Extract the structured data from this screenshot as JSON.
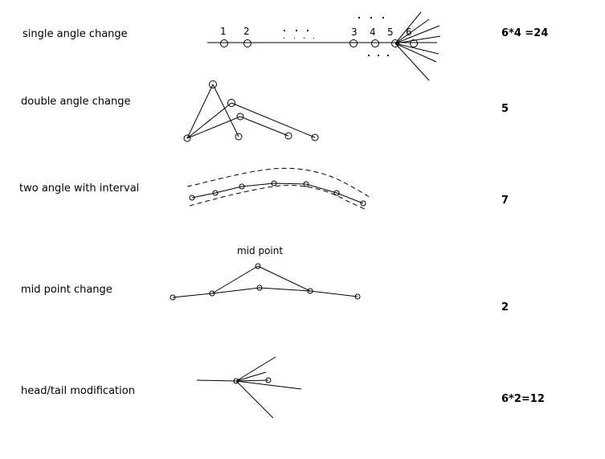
{
  "rows": [
    {
      "label": "single angle change",
      "count": "6*4 =24"
    },
    {
      "label": "double angle change",
      "count": "5"
    },
    {
      "label": "two angle with interval",
      "count": "7"
    },
    {
      "label": "mid point change",
      "count": "2"
    },
    {
      "label": "head/tail modification",
      "count": "6*2=12"
    }
  ],
  "single_row_numbers": [
    "1",
    "2",
    "3",
    "4",
    "5",
    "6"
  ],
  "mid_point_caption": "mid point"
}
